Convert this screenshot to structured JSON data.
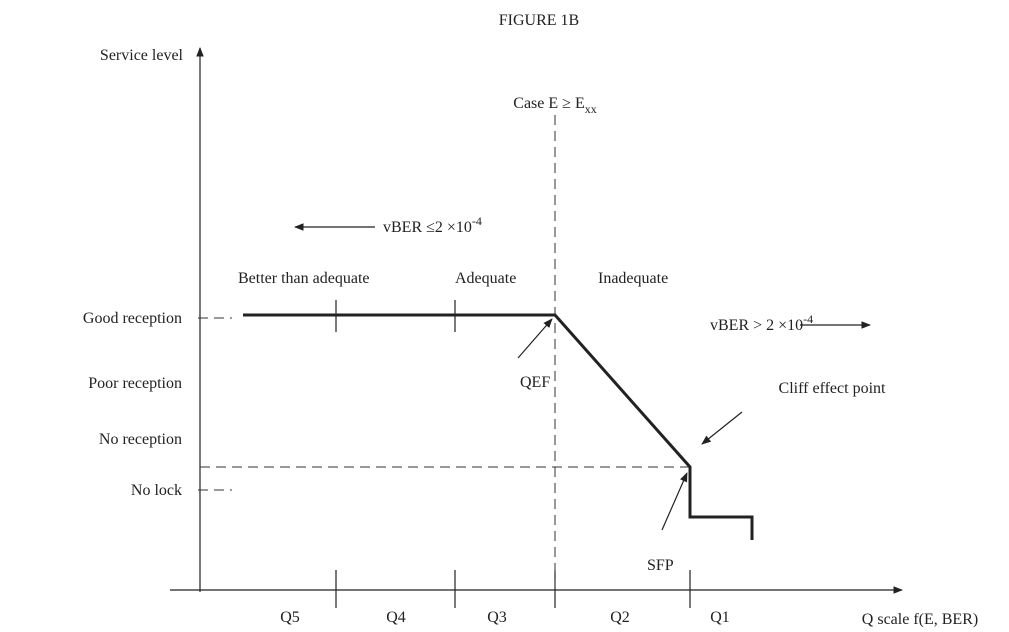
{
  "figure_title": "FIGURE 1B",
  "y_axis_label": "Service level",
  "x_axis_label": "Q scale f(E, BER)",
  "threshold_label": {
    "text": "Case E ≥ E",
    "sub": "xx"
  },
  "left_condition": {
    "text": "vBER ≤2 ×10",
    "sup": "-4"
  },
  "right_condition": {
    "text": "vBER > 2 ×10",
    "sup": "-4"
  },
  "regions": [
    "Better than adequate",
    "Adequate",
    "Inadequate"
  ],
  "service_levels": [
    "Good reception",
    "Poor reception",
    "No reception",
    "No lock"
  ],
  "annotations": {
    "qef": "QEF",
    "cliff": "Cliff effect point",
    "sfp": "SFP"
  },
  "q_scale": [
    "Q5",
    "Q4",
    "Q3",
    "Q2",
    "Q1"
  ]
}
